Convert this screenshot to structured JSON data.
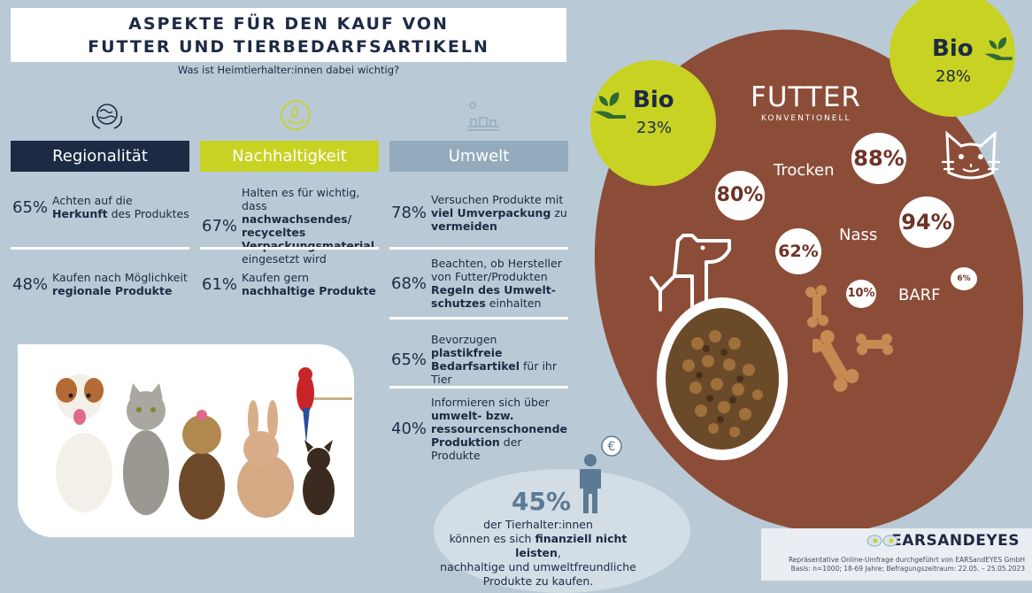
{
  "header": {
    "title_line1": "ASPEKTE FÜR DEN KAUF VON",
    "title_line2": "FUTTER UND TIERBEDARFSARTIKELN",
    "subtitle": "Was ist Heimtierhalter:innen dabei wichtig?"
  },
  "categories": [
    {
      "label": "Regionalität",
      "color": "#1d2a44",
      "icon": "globe-hands-icon"
    },
    {
      "label": "Nachhaltigkeit",
      "color": "#c8d223",
      "icon": "leaf-hands-icon"
    },
    {
      "label": "Umwelt",
      "color": "#93abbd",
      "icon": "sun-landscape-icon"
    }
  ],
  "regional": [
    {
      "pct": "65%",
      "pre": "Achten auf die ",
      "bold": "Herkunft",
      "post": " des Produktes"
    },
    {
      "pct": "48%",
      "pre": "Kaufen nach Möglichkeit ",
      "bold": "regionale Produkte",
      "post": ""
    }
  ],
  "nachhaltig": [
    {
      "pct": "67%",
      "pre": "Halten es für wichtig, dass ",
      "bold": "nachwachsendes/ recyceltes Verpackungs­material",
      "post": " eingesetzt wird"
    },
    {
      "pct": "61%",
      "pre": "Kaufen gern ",
      "bold": "nachhaltige Produkte",
      "post": ""
    }
  ],
  "umwelt": [
    {
      "pct": "78%",
      "pre": "Versuchen Produkte mit ",
      "bold": "viel Umverpackung",
      "mid": " zu ",
      "bold2": "vermeiden",
      "post": ""
    },
    {
      "pct": "68%",
      "pre": "Beachten, ob Hersteller von Futter/Produkten ",
      "bold": "Regeln des Umwelt­schutzes",
      "mid": " einhalten",
      "bold2": "",
      "post": ""
    },
    {
      "pct": "65%",
      "pre": "Bevorzugen ",
      "bold": "plastikfreie Bedarfsartikel",
      "mid": " für ihr Tier",
      "bold2": "",
      "post": ""
    },
    {
      "pct": "40%",
      "pre": "Informieren sich über ",
      "bold": "umwelt- bzw. ressourcenschonende Produktion",
      "mid": " der Produkte",
      "bold2": "",
      "post": ""
    }
  ],
  "money": {
    "pct": "45%",
    "line1": "der Tierhalter:innen",
    "line2_pre": "können es sich ",
    "line2_bold": "finanziell nicht leisten",
    "line2_post": ",",
    "line3": "nachhaltige und umweltfreundliche",
    "line4": "Produkte zu kaufen.",
    "icon": "euro-person-icon"
  },
  "futter": {
    "title": "FUTTER",
    "subtitle": "KONVENTIONELL",
    "bio_dog_label": "Bio",
    "bio_dog_pct": "23%",
    "bio_cat_label": "Bio",
    "bio_cat_pct": "28%",
    "trocken_label": "Trocken",
    "nass_label": "Nass",
    "barf_label": "BARF",
    "dog_trocken": "80%",
    "cat_trocken": "88%",
    "dog_nass": "62%",
    "cat_nass": "94%",
    "dog_barf": "10%",
    "cat_barf": "6%"
  },
  "footer": {
    "brand": "EARSANDEYES",
    "line1": "Repräsentative Online-Umfrage durchgeführt von EARSandEYES GmbH",
    "line2": "Basis: n=1000; 18-69 Jahre; Befragungszeitraum: 22.05. – 25.05.2023"
  },
  "colors": {
    "navy": "#1d2a44",
    "lime": "#c8d223",
    "steel": "#93abbd",
    "brown": "#8c4d38"
  }
}
